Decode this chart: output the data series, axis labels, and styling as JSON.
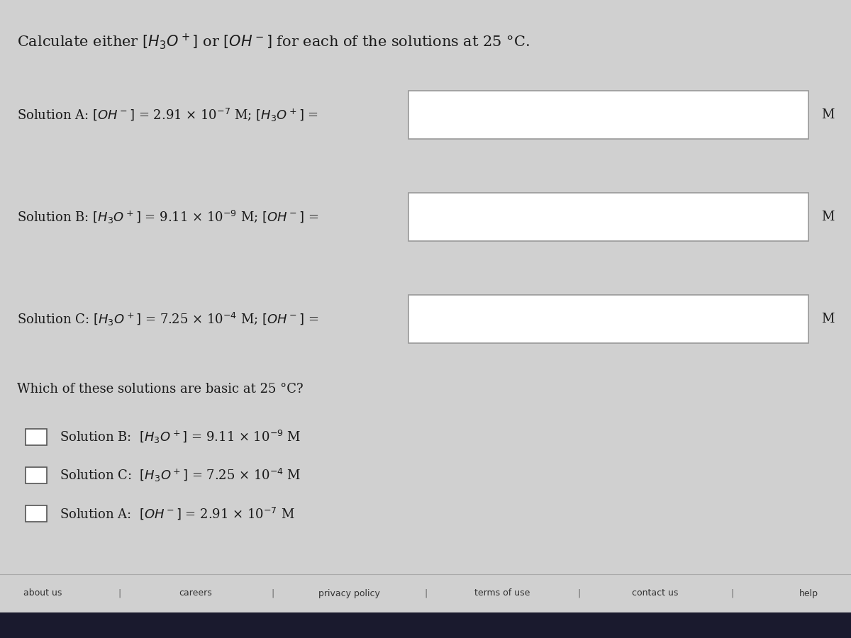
{
  "title": "Calculate either $[H_3O^+]$ or $[OH^-]$ for each of the solutions at 25 °C.",
  "bg_color": "#d0d0d0",
  "content_bg": "#e8e8e8",
  "solution_a_label": "Solution A: $[OH^-]$ = 2.91 × 10$^{-7}$ M; $[H_3O^+]$ =",
  "solution_b_label": "Solution B: $[H_3O^+]$ = 9.11 × 10$^{-9}$ M; $[OH^-]$ =",
  "solution_c_label": "Solution C: $[H_3O^+]$ = 7.25 × 10$^{-4}$ M; $[OH^-]$ =",
  "which_label": "Which of these solutions are basic at 25 °C?",
  "checkbox_b": "Solution B:  $[H_3O^+]$ = 9.11 × 10$^{-9}$ M",
  "checkbox_c": "Solution C:  $[H_3O^+]$ = 7.25 × 10$^{-4}$ M",
  "checkbox_a": "Solution A:  $[OH^-]$ = 2.91 × 10$^{-7}$ M",
  "footer_items": [
    "about us",
    "careers",
    "privacy policy",
    "terms of use",
    "contact us",
    "help"
  ],
  "text_color": "#1a1a1a",
  "box_fill": "#ffffff",
  "box_edge": "#999999",
  "font_size_title": 15,
  "font_size_body": 13,
  "font_size_footer": 9
}
